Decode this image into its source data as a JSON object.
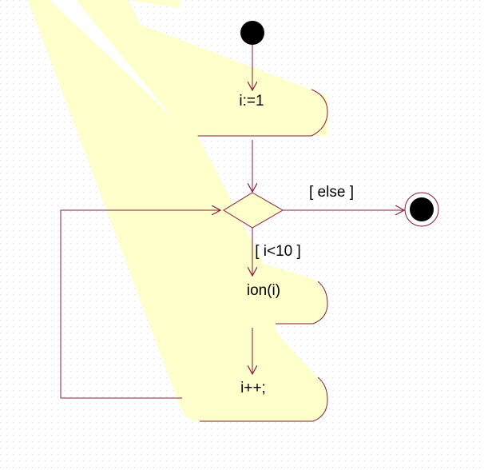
{
  "diagram": {
    "type": "uml-activity",
    "colors": {
      "background": "#ffffff",
      "grid_dot": "#d9d9d9",
      "activity_fill": "#ffffcc",
      "line": "#8b1a3a",
      "node_black": "#000000"
    },
    "nodes": {
      "init": "i:=1",
      "call": "ion(i)",
      "increment": "i++;"
    },
    "guards": {
      "else": "[ else ]",
      "loop": "[ i<10 ]"
    }
  }
}
